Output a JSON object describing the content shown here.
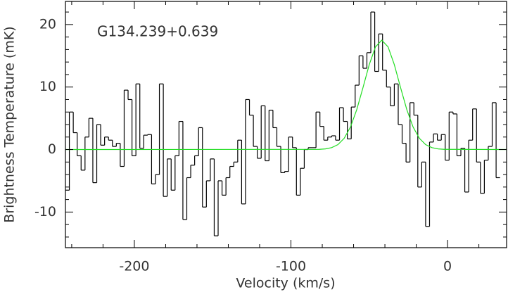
{
  "chart_data": {
    "type": "line",
    "xlabel": "Velocity (km/s)",
    "ylabel": "Brightness Temperature (mK)",
    "annotation": "G134.239+0.639",
    "xlim": [
      -244,
      37.7
    ],
    "ylim": [
      -15.7,
      23.7
    ],
    "xticks": [
      -200,
      -100,
      0
    ],
    "yticks": [
      -10,
      0,
      10,
      20
    ],
    "xminorticks": [
      -240,
      -220,
      -180,
      -160,
      -140,
      -120,
      -80,
      -60,
      -40,
      -20,
      20
    ],
    "yminorticks": [
      -14,
      -12,
      -8,
      -6,
      -4,
      -2,
      2,
      4,
      6,
      8,
      12,
      14,
      16,
      18,
      22
    ],
    "series": [
      {
        "color": "#000000",
        "drawstyle": "steps-mid",
        "x": [
          -242.75,
          -240.25,
          -237.75,
          -235.25,
          -232.75,
          -230.25,
          -227.75,
          -225.25,
          -222.75,
          -220.25,
          -217.75,
          -215.25,
          -212.75,
          -210.25,
          -207.75,
          -205.25,
          -202.75,
          -200.25,
          -197.75,
          -195.25,
          -192.75,
          -190.25,
          -187.75,
          -185.25,
          -182.75,
          -180.25,
          -177.75,
          -175.25,
          -172.75,
          -170.25,
          -167.75,
          -165.25,
          -162.75,
          -160.25,
          -157.75,
          -155.25,
          -152.75,
          -150.25,
          -147.75,
          -145.25,
          -142.75,
          -140.25,
          -137.75,
          -135.25,
          -132.75,
          -130.25,
          -127.75,
          -125.25,
          -122.75,
          -120.25,
          -117.75,
          -115.25,
          -112.75,
          -110.25,
          -107.75,
          -105.25,
          -102.75,
          -100.25,
          -97.75,
          -95.25,
          -92.75,
          -90.25,
          -87.75,
          -85.25,
          -82.75,
          -80.25,
          -77.75,
          -75.25,
          -72.75,
          -70.25,
          -67.75,
          -65.25,
          -62.75,
          -60.25,
          -57.75,
          -55.25,
          -52.75,
          -50.25,
          -47.75,
          -45.25,
          -42.75,
          -40.25,
          -37.75,
          -35.25,
          -32.75,
          -30.25,
          -27.75,
          -25.25,
          -22.75,
          -20.25,
          -17.75,
          -15.25,
          -12.75,
          -10.25,
          -7.75,
          -5.25,
          -2.75,
          -0.25,
          2.25,
          4.75,
          7.25,
          9.75,
          12.25,
          14.75,
          17.25,
          19.75,
          22.25,
          24.75,
          27.25,
          29.75,
          32.25
        ],
        "values": [
          -6.5,
          6,
          2.7,
          -1,
          -3.3,
          2,
          5,
          -5.3,
          4,
          0.7,
          2,
          1.5,
          0.5,
          1,
          -2.7,
          9.5,
          8,
          -1,
          10.5,
          0.2,
          2.3,
          2.4,
          -5.5,
          -4,
          10.5,
          -7.5,
          -1.5,
          -6.5,
          -1,
          4.5,
          -11.2,
          -4.5,
          -2.5,
          -1,
          3.5,
          -9.2,
          -5,
          -1.5,
          -13.8,
          -5,
          -7.3,
          -4.5,
          -2.7,
          -2,
          1.5,
          -8.7,
          8,
          5.5,
          0.5,
          -1.4,
          7,
          -1.8,
          6.3,
          3.5,
          0.5,
          -3.7,
          -3.5,
          2,
          0.3,
          -7.3,
          -3,
          0,
          0.3,
          0.3,
          6,
          3.7,
          1.5,
          2,
          2.2,
          1.5,
          6.7,
          4.5,
          1.7,
          6.8,
          10.3,
          15,
          13,
          15.5,
          22,
          12.5,
          18.5,
          12.7,
          10,
          7,
          10.5,
          4,
          1,
          -2,
          7.5,
          5.5,
          -6,
          -2,
          -12.3,
          1.2,
          2.5,
          1.5,
          2.4,
          -1.7,
          6,
          5.7,
          -1,
          0.2,
          -6.8,
          1.5,
          6.5,
          -2,
          -7,
          -1.7,
          0.5,
          7.5,
          -4.5
        ]
      },
      {
        "color": "#22dd22",
        "drawstyle": "line",
        "x": [
          -244,
          -82,
          -78,
          -74,
          -70,
          -66,
          -62,
          -58,
          -54,
          -50,
          -46,
          -42,
          -38,
          -34,
          -30,
          -26,
          -22,
          -18,
          -14,
          -10,
          -6,
          -2,
          37.7
        ],
        "values": [
          0,
          0.03,
          0.1,
          0.31,
          0.79,
          1.8,
          3.6,
          6.37,
          9.91,
          13.59,
          16.43,
          17.5,
          16.43,
          13.59,
          9.91,
          6.37,
          3.6,
          1.8,
          0.79,
          0.31,
          0.1,
          0.03,
          0
        ]
      }
    ]
  }
}
